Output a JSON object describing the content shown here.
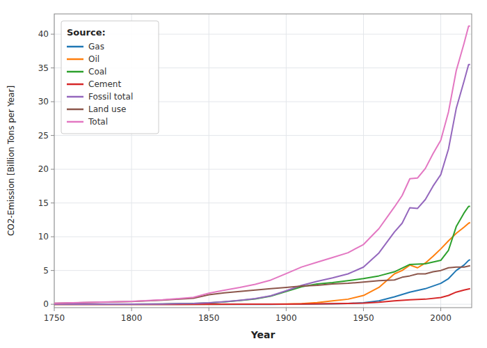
{
  "chart_data": {
    "type": "line",
    "xlabel": "Year",
    "ylabel": "CO2-Emission [Billion Tons per Year]",
    "xlim": [
      1750,
      2020
    ],
    "ylim": [
      -0.5,
      43
    ],
    "xticks": [
      1750,
      1800,
      1850,
      1900,
      1950,
      2000
    ],
    "yticks": [
      0,
      5,
      10,
      15,
      20,
      25,
      30,
      35,
      40
    ],
    "grid": true,
    "legend": "upper-left",
    "legend_title": "Source:",
    "series": [
      {
        "name": "Gas",
        "color": "#1f77b4",
        "x": [
          1750,
          1800,
          1850,
          1870,
          1880,
          1890,
          1900,
          1910,
          1920,
          1930,
          1940,
          1950,
          1960,
          1970,
          1980,
          1990,
          2000,
          2005,
          2010,
          2015,
          2018,
          2019
        ],
        "values": [
          0.0,
          0.0,
          0.0,
          0.0,
          0.0,
          0.0,
          0.01,
          0.02,
          0.04,
          0.07,
          0.12,
          0.21,
          0.5,
          1.1,
          1.8,
          2.3,
          3.1,
          3.8,
          5.0,
          5.8,
          6.5,
          6.6
        ]
      },
      {
        "name": "Oil",
        "color": "#ff7f0e",
        "x": [
          1750,
          1800,
          1850,
          1870,
          1880,
          1890,
          1900,
          1910,
          1920,
          1930,
          1940,
          1950,
          1960,
          1970,
          1975,
          1980,
          1985,
          1990,
          1995,
          2000,
          2005,
          2010,
          2015,
          2018,
          2019
        ],
        "values": [
          0.0,
          0.0,
          0.0,
          0.003,
          0.01,
          0.02,
          0.04,
          0.1,
          0.25,
          0.5,
          0.75,
          1.3,
          2.5,
          4.5,
          5.0,
          5.8,
          5.4,
          6.1,
          7.1,
          8.2,
          9.4,
          10.5,
          11.4,
          12.0,
          12.1
        ]
      },
      {
        "name": "Coal",
        "color": "#2ca02c",
        "x": [
          1750,
          1800,
          1820,
          1840,
          1850,
          1860,
          1870,
          1880,
          1890,
          1900,
          1910,
          1920,
          1930,
          1940,
          1950,
          1960,
          1970,
          1980,
          1990,
          2000,
          2005,
          2010,
          2015,
          2018,
          2019
        ],
        "values": [
          0.003,
          0.02,
          0.05,
          0.12,
          0.2,
          0.35,
          0.55,
          0.8,
          1.2,
          1.9,
          2.6,
          3.0,
          3.2,
          3.5,
          3.8,
          4.2,
          4.8,
          5.9,
          6.0,
          6.5,
          8.0,
          11.5,
          13.5,
          14.5,
          14.5
        ]
      },
      {
        "name": "Cement",
        "color": "#d62728",
        "x": [
          1750,
          1800,
          1850,
          1870,
          1880,
          1890,
          1900,
          1910,
          1920,
          1930,
          1940,
          1950,
          1960,
          1970,
          1980,
          1990,
          2000,
          2005,
          2010,
          2015,
          2018,
          2019
        ],
        "values": [
          0.0,
          0.0,
          0.003,
          0.005,
          0.008,
          0.01,
          0.02,
          0.04,
          0.06,
          0.1,
          0.12,
          0.17,
          0.3,
          0.5,
          0.65,
          0.75,
          1.0,
          1.3,
          1.8,
          2.1,
          2.25,
          2.3
        ]
      },
      {
        "name": "Fossil total",
        "color": "#9467bd",
        "x": [
          1750,
          1800,
          1820,
          1840,
          1850,
          1860,
          1870,
          1880,
          1890,
          1900,
          1910,
          1920,
          1930,
          1940,
          1950,
          1960,
          1970,
          1975,
          1980,
          1985,
          1990,
          1995,
          2000,
          2005,
          2010,
          2015,
          2018,
          2019
        ],
        "values": [
          0.003,
          0.02,
          0.05,
          0.12,
          0.21,
          0.37,
          0.58,
          0.84,
          1.26,
          2.0,
          2.8,
          3.4,
          3.9,
          4.5,
          5.5,
          7.6,
          10.7,
          12.0,
          14.3,
          14.2,
          15.5,
          17.5,
          19.2,
          23.0,
          29.0,
          33.0,
          35.5,
          35.5
        ]
      },
      {
        "name": "Land use",
        "color": "#8c564b",
        "x": [
          1750,
          1770,
          1800,
          1820,
          1840,
          1850,
          1860,
          1870,
          1880,
          1890,
          1900,
          1910,
          1920,
          1930,
          1940,
          1950,
          1960,
          1970,
          1975,
          1980,
          1985,
          1990,
          1995,
          2000,
          2005,
          2010,
          2015,
          2018,
          2019
        ],
        "values": [
          0.15,
          0.25,
          0.4,
          0.6,
          0.9,
          1.4,
          1.7,
          1.9,
          2.1,
          2.3,
          2.5,
          2.7,
          2.8,
          3.0,
          3.1,
          3.3,
          3.5,
          3.6,
          4.0,
          4.2,
          4.5,
          4.5,
          4.8,
          5.0,
          5.4,
          5.5,
          5.5,
          5.65,
          5.7
        ]
      },
      {
        "name": "Total",
        "color": "#e377c2",
        "x": [
          1750,
          1770,
          1800,
          1820,
          1840,
          1850,
          1860,
          1870,
          1880,
          1890,
          1900,
          1910,
          1920,
          1930,
          1940,
          1950,
          1960,
          1970,
          1975,
          1980,
          1985,
          1990,
          1995,
          2000,
          2005,
          2010,
          2015,
          2018,
          2019
        ],
        "values": [
          0.15,
          0.27,
          0.44,
          0.65,
          1.03,
          1.63,
          2.08,
          2.49,
          2.96,
          3.58,
          4.53,
          5.52,
          6.23,
          6.93,
          7.63,
          8.85,
          11.2,
          14.4,
          16.1,
          18.6,
          18.7,
          20.1,
          22.3,
          24.3,
          28.5,
          34.6,
          38.6,
          41.2,
          41.2
        ]
      }
    ]
  }
}
